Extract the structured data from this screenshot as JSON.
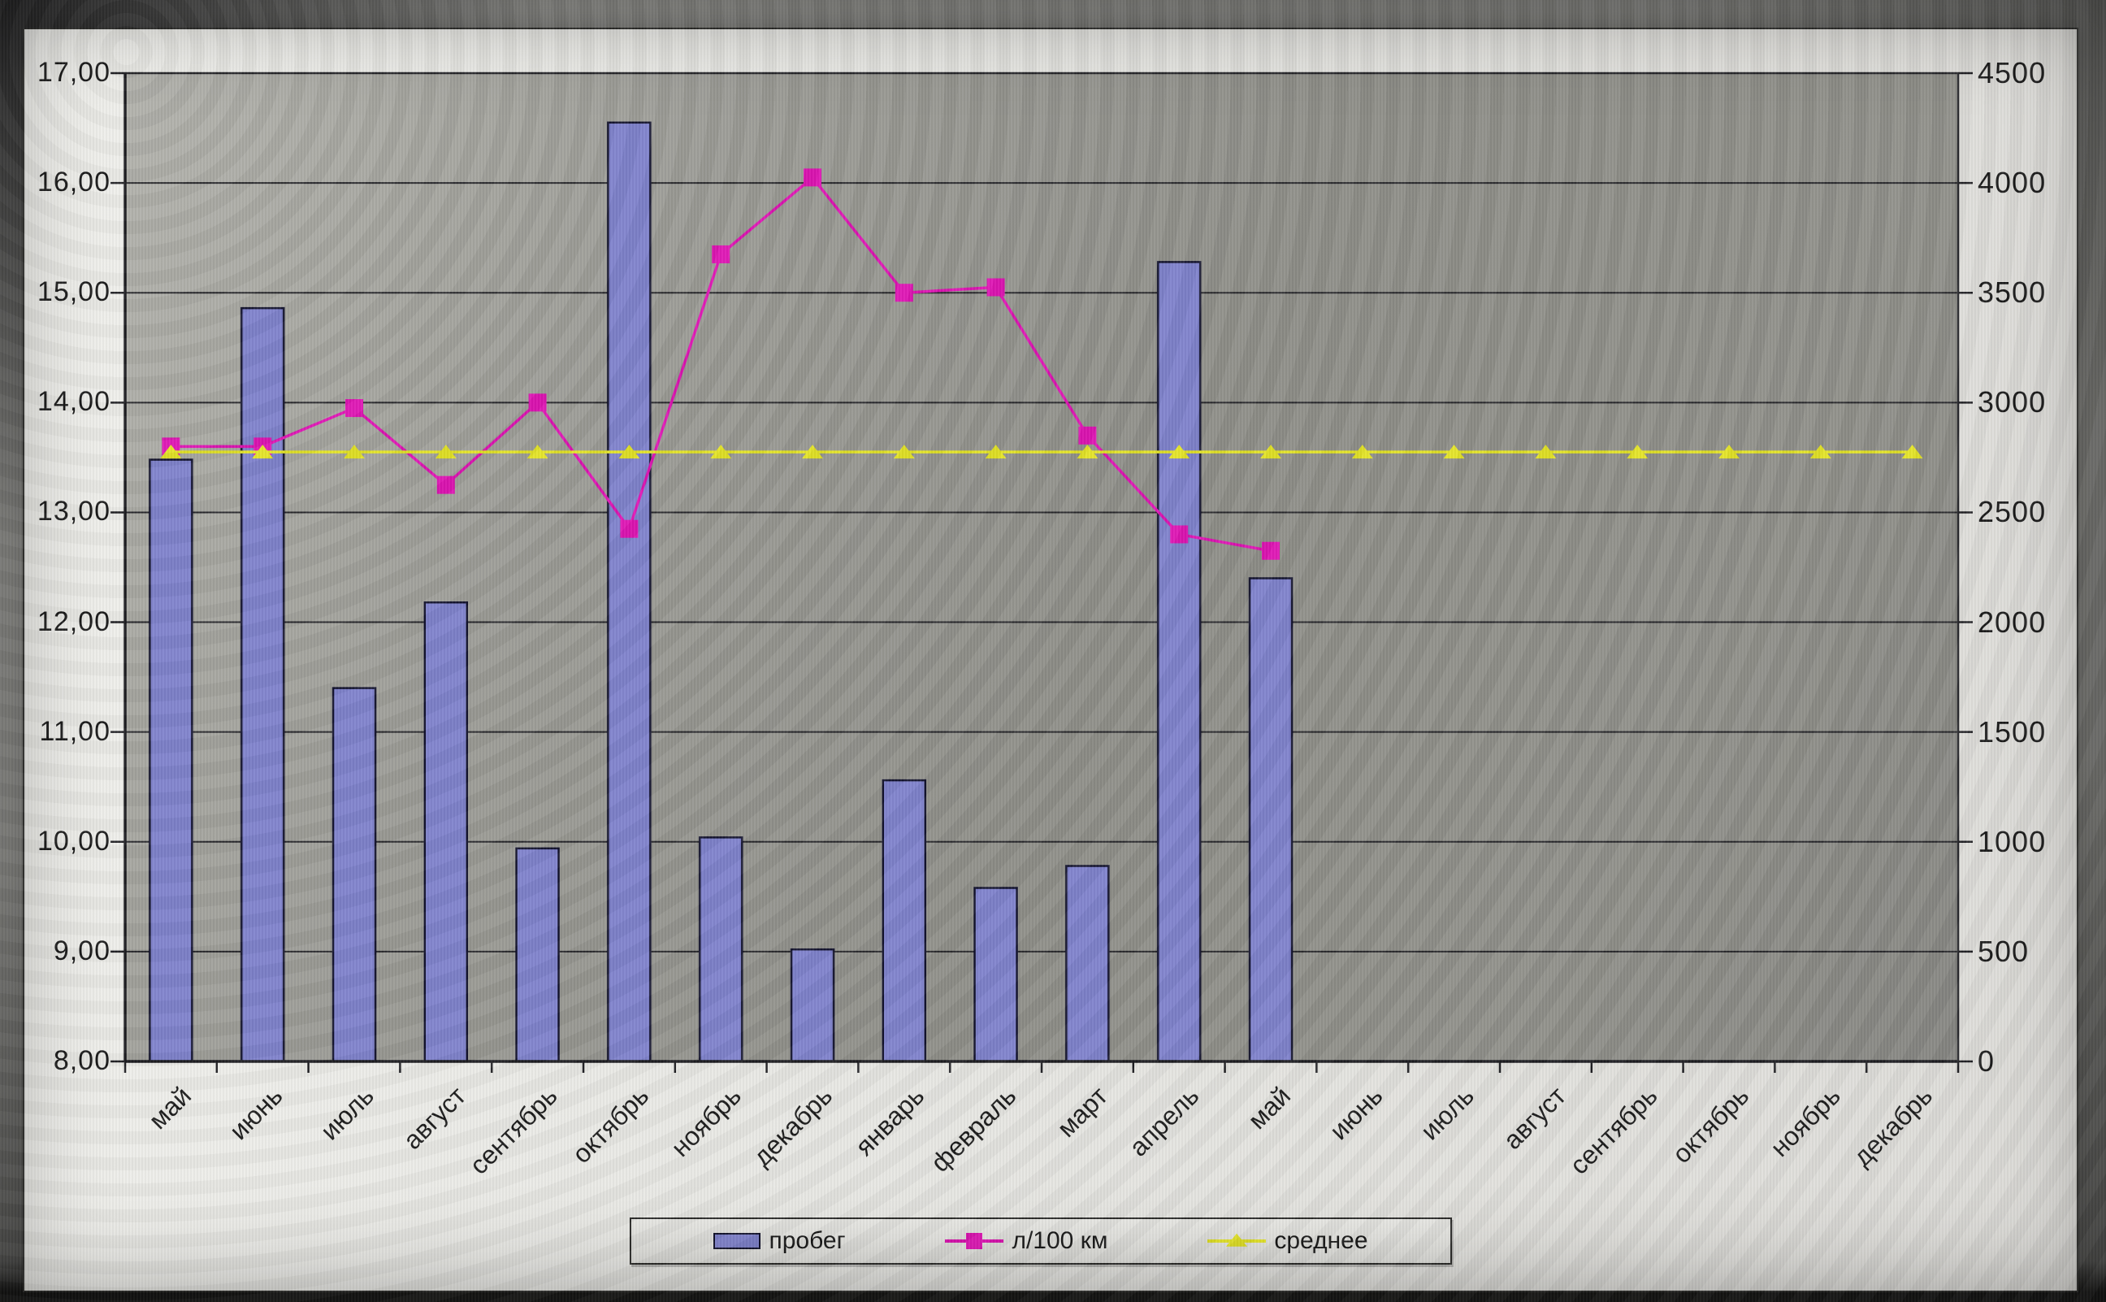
{
  "chart_data": {
    "type": "bar",
    "subtype": "combo-bar-line",
    "title": "",
    "xlabel": "",
    "ylabel_left": "",
    "ylabel_right": "",
    "grid": true,
    "legend_position": "bottom",
    "categories": [
      "май",
      "июнь",
      "июль",
      "август",
      "сентябрь",
      "октябрь",
      "ноябрь",
      "декабрь",
      "январь",
      "февраль",
      "март",
      "апрель",
      "май",
      "июнь",
      "июль",
      "август",
      "сентябрь",
      "октябрь",
      "ноябрь",
      "декабрь"
    ],
    "axes": {
      "left": {
        "min": 8,
        "max": 17,
        "step": 1,
        "tick_labels": [
          "17,00",
          "16,00",
          "15,00",
          "14,00",
          "13,00",
          "12,00",
          "11,00",
          "10,00",
          "9,00",
          "8,00"
        ]
      },
      "right": {
        "min": 0,
        "max": 4500,
        "step": 500,
        "tick_labels": [
          "4500",
          "4000",
          "3500",
          "3000",
          "2500",
          "2000",
          "1500",
          "1000",
          "500",
          "0"
        ]
      }
    },
    "series": [
      {
        "name": "пробег",
        "type": "bar",
        "axis": "right",
        "color": "#7f82cc",
        "border_color": "#14142e",
        "values": [
          2740,
          3430,
          1700,
          2090,
          970,
          4275,
          1020,
          510,
          1280,
          790,
          890,
          3640,
          2200,
          null,
          null,
          null,
          null,
          null,
          null,
          null
        ]
      },
      {
        "name": "л/100 км",
        "type": "line",
        "marker": "square",
        "axis": "left",
        "color": "#df14b4",
        "values": [
          13.6,
          13.6,
          13.95,
          13.25,
          14.0,
          12.85,
          15.35,
          16.05,
          15.0,
          15.05,
          13.7,
          12.8,
          12.65,
          null,
          null,
          null,
          null,
          null,
          null,
          null
        ]
      },
      {
        "name": "среднее",
        "type": "line",
        "marker": "triangle",
        "axis": "left",
        "color": "#e4e426",
        "values": [
          13.55,
          13.55,
          13.55,
          13.55,
          13.55,
          13.55,
          13.55,
          13.55,
          13.55,
          13.55,
          13.55,
          13.55,
          13.55,
          13.55,
          13.55,
          13.55,
          13.55,
          13.55,
          13.55,
          13.55
        ]
      }
    ],
    "colors": {
      "plot_background": "#90908a",
      "sheet_background": "#e7e7e3",
      "gridline": "#26262a"
    }
  }
}
